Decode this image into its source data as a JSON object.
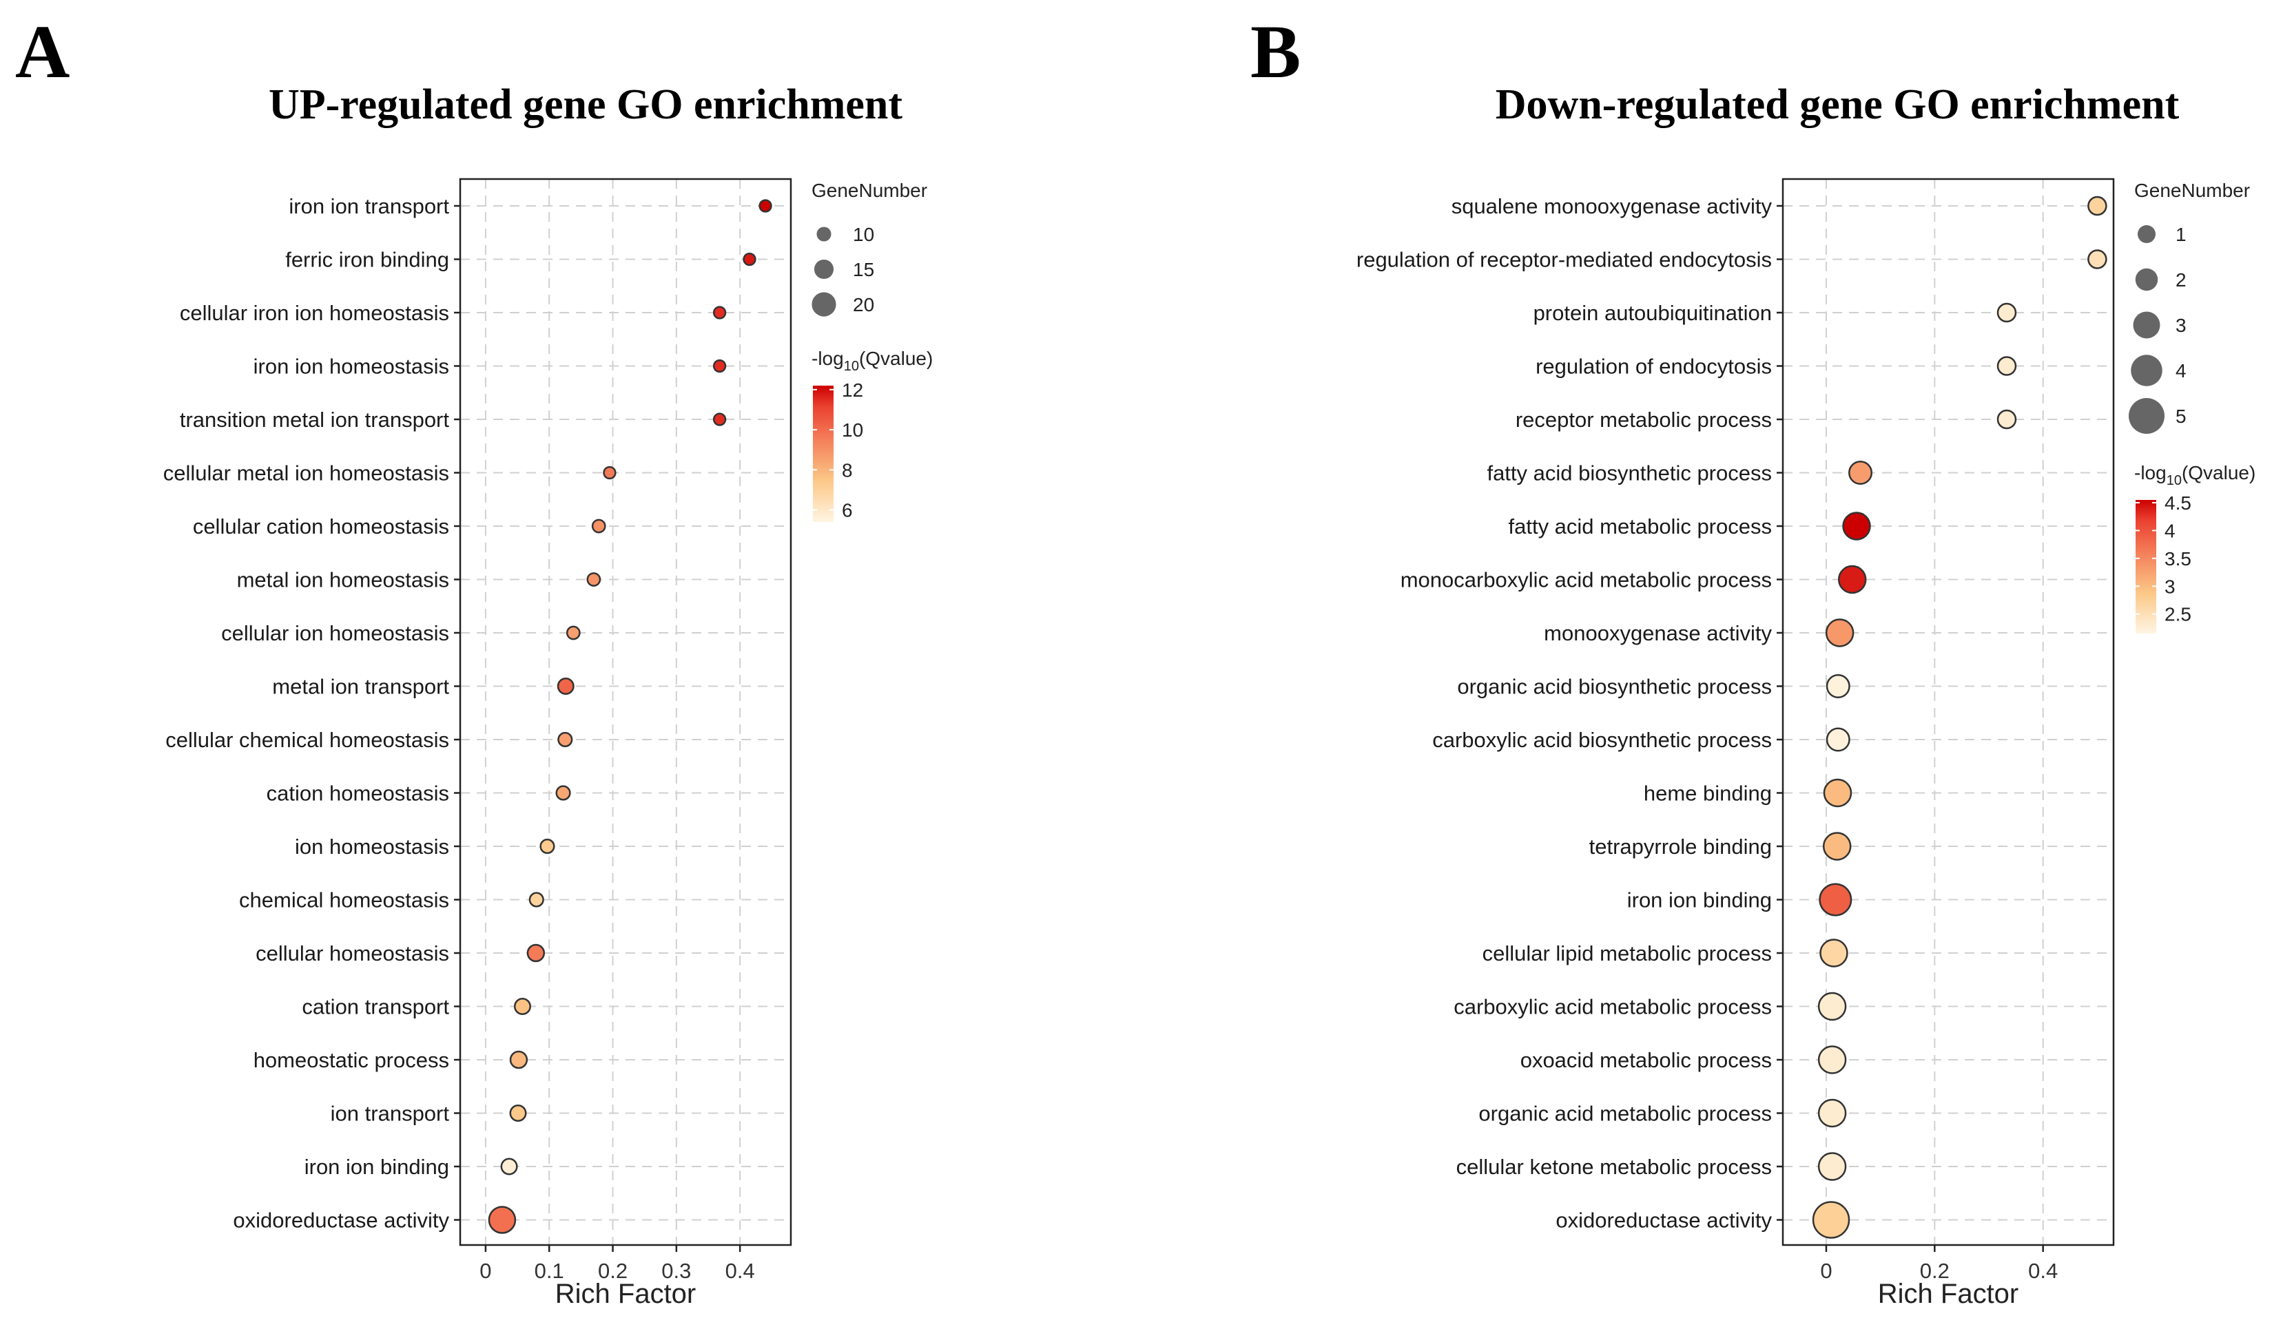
{
  "chart_data": [
    {
      "panel_label": "A",
      "type": "scatter",
      "title": "UP-regulated gene GO enrichment",
      "xlabel": "Rich Factor",
      "ylabel": "",
      "xlim": [
        -0.04,
        0.48
      ],
      "xticks": [
        0,
        0.1,
        0.2,
        0.3,
        0.4
      ],
      "xtick_labels": [
        "0",
        "0.1",
        "0.2",
        "0.3",
        "0.4"
      ],
      "grid": true,
      "categories": [
        "iron ion transport",
        "ferric iron binding",
        "cellular iron ion homeostasis",
        "iron ion homeostasis",
        "transition metal ion transport",
        "cellular metal ion homeostasis",
        "cellular cation homeostasis",
        "metal ion homeostasis",
        "cellular ion homeostasis",
        "metal ion transport",
        "cellular chemical homeostasis",
        "cation homeostasis",
        "ion homeostasis",
        "chemical homeostasis",
        "cellular homeostasis",
        "cation transport",
        "homeostatic process",
        "ion transport",
        "iron ion binding",
        "oxidoreductase activity"
      ],
      "rich_factor": [
        0.44,
        0.415,
        0.368,
        0.368,
        0.368,
        0.195,
        0.178,
        0.17,
        0.138,
        0.126,
        0.125,
        0.122,
        0.097,
        0.08,
        0.079,
        0.058,
        0.052,
        0.051,
        0.037,
        0.026
      ],
      "gene_number": [
        7,
        7,
        7,
        7,
        7,
        7,
        8,
        8,
        8,
        11,
        9,
        9,
        9,
        9,
        12,
        11,
        12,
        11,
        11,
        22
      ],
      "neg_log10_q": [
        12.2,
        11.8,
        11.5,
        11.5,
        11.5,
        9.6,
        9.0,
        8.9,
        8.6,
        10.2,
        8.6,
        8.4,
        7.3,
        7.0,
        9.6,
        7.6,
        7.9,
        7.4,
        5.7,
        9.9
      ],
      "size_legend": {
        "title": "GeneNumber",
        "values": [
          10,
          15,
          20
        ],
        "labels": [
          "10",
          "15",
          "20"
        ]
      },
      "color_legend": {
        "title_prefix": "-log",
        "title_sub": "10",
        "title_suffix": "(Qvalue)",
        "min": 5.4,
        "max": 12.2,
        "ticks": [
          12,
          10,
          8,
          6
        ],
        "tick_labels": [
          "12",
          "10",
          "8",
          "6"
        ]
      },
      "size_range_genes": [
        5,
        22
      ],
      "size_range_radius": [
        7,
        19
      ]
    },
    {
      "panel_label": "B",
      "type": "scatter",
      "title": "Down-regulated gene GO enrichment",
      "xlabel": "Rich Factor",
      "ylabel": "",
      "xlim": [
        -0.08,
        0.53
      ],
      "xticks": [
        0,
        0.2,
        0.4
      ],
      "xtick_labels": [
        "0",
        "0.2",
        "0.4"
      ],
      "grid": true,
      "categories": [
        "squalene monooxygenase activity",
        "regulation of receptor-mediated endocytosis",
        "protein autoubiquitination",
        "regulation of endocytosis",
        "receptor metabolic process",
        "fatty acid biosynthetic process",
        "fatty acid metabolic process",
        "monocarboxylic acid metabolic process",
        "monooxygenase activity",
        "organic acid biosynthetic process",
        "carboxylic acid biosynthetic process",
        "heme binding",
        "tetrapyrrole binding",
        "iron ion binding",
        "cellular lipid metabolic process",
        "carboxylic acid metabolic process",
        "oxoacid metabolic process",
        "organic acid metabolic process",
        "cellular ketone metabolic process",
        "oxidoreductase activity"
      ],
      "rich_factor": [
        0.5,
        0.5,
        0.333,
        0.333,
        0.333,
        0.063,
        0.056,
        0.048,
        0.025,
        0.022,
        0.022,
        0.021,
        0.02,
        0.017,
        0.014,
        0.011,
        0.011,
        0.011,
        0.011,
        0.009
      ],
      "gene_number": [
        1,
        1,
        1,
        1,
        1,
        2,
        3,
        3,
        3,
        2,
        2,
        3,
        3,
        4,
        3,
        3,
        3,
        3,
        3,
        5
      ],
      "neg_log10_q": [
        2.7,
        2.5,
        2.3,
        2.3,
        2.3,
        3.3,
        4.55,
        4.4,
        3.35,
        2.2,
        2.2,
        3.0,
        3.0,
        3.9,
        2.65,
        2.3,
        2.3,
        2.3,
        2.3,
        2.75
      ],
      "size_legend": {
        "title": "GeneNumber",
        "values": [
          1,
          2,
          3,
          4,
          5
        ],
        "labels": [
          "1",
          "2",
          "3",
          "4",
          "5"
        ]
      },
      "color_legend": {
        "title_prefix": "-log",
        "title_sub": "10",
        "title_suffix": "(Qvalue)",
        "min": 2.15,
        "max": 4.55,
        "ticks": [
          4.5,
          4,
          3.5,
          3,
          2.5
        ],
        "tick_labels": [
          "4.5",
          "4",
          "3.5",
          "3",
          "2.5"
        ]
      },
      "size_range_genes": [
        1,
        5
      ],
      "size_range_radius": [
        13,
        26
      ]
    }
  ],
  "colors": {
    "low": "#fff5e3",
    "mid1": "#fcc888",
    "mid2": "#f4805a",
    "mid3": "#ea4030",
    "high": "#cc0000",
    "axis": "#222222",
    "grid": "#d0d0d0"
  }
}
